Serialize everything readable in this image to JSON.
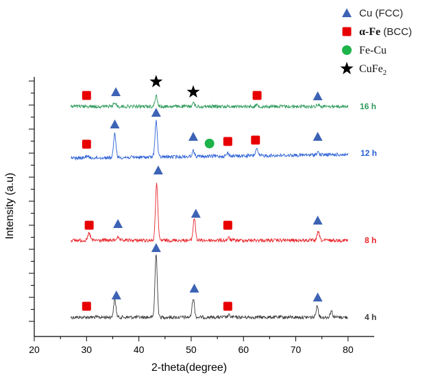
{
  "chart_data": {
    "type": "line",
    "xlabel": "2-theta(degree)",
    "ylabel": "Intensity (a.u)",
    "xlim": [
      20,
      85
    ],
    "xticks": [
      20,
      30,
      40,
      50,
      60,
      70,
      80
    ],
    "y_tick_labels": "none",
    "x_range_of_patterns": [
      27,
      80
    ],
    "series": [
      {
        "name": "4 h",
        "color": "#3a3a3a",
        "peaks": [
          {
            "x": 35.4,
            "height": 0.28
          },
          {
            "x": 43.3,
            "height": 1.0
          },
          {
            "x": 50.4,
            "height": 0.3
          },
          {
            "x": 57.2,
            "height": 0.03
          },
          {
            "x": 74.1,
            "height": 0.18
          },
          {
            "x": 76.8,
            "height": 0.1
          }
        ]
      },
      {
        "name": "8 h",
        "color": "#e8232a",
        "peaks": [
          {
            "x": 30.5,
            "height": 0.12
          },
          {
            "x": 35.9,
            "height": 0.05
          },
          {
            "x": 43.4,
            "height": 0.96
          },
          {
            "x": 50.6,
            "height": 0.37
          },
          {
            "x": 57.2,
            "height": 0.04
          },
          {
            "x": 74.3,
            "height": 0.14
          }
        ]
      },
      {
        "name": "12 h",
        "color": "#2a5fd6",
        "peaks": [
          {
            "x": 30.1,
            "height": 0.05
          },
          {
            "x": 35.4,
            "height": 0.5
          },
          {
            "x": 43.3,
            "height": 0.75
          },
          {
            "x": 50.4,
            "height": 0.12
          },
          {
            "x": 57.0,
            "height": 0.06
          },
          {
            "x": 62.5,
            "height": 0.14
          },
          {
            "x": 74.2,
            "height": 0.06
          }
        ]
      },
      {
        "name": "16 h",
        "color": "#2e9a5c",
        "peaks": [
          {
            "x": 35.4,
            "height": 0.12
          },
          {
            "x": 43.3,
            "height": 0.32
          },
          {
            "x": 50.4,
            "height": 0.1
          },
          {
            "x": 62.6,
            "height": 0.05
          },
          {
            "x": 74.2,
            "height": 0.06
          }
        ]
      }
    ],
    "legend": {
      "placement": "top-right",
      "entries": [
        {
          "symbol": "triangle",
          "color": "#3d63b5",
          "label": "Cu (FCC)"
        },
        {
          "symbol": "square",
          "color": "#e80000",
          "label_main": "α-Fe",
          "label_suffix": " (BCC)"
        },
        {
          "symbol": "circle",
          "color": "#1db34a",
          "label": "Fe-Cu"
        },
        {
          "symbol": "star",
          "color": "#000000",
          "label_main": "CuFe",
          "label_sub": "2"
        }
      ]
    },
    "markers": [
      {
        "series": "4 h",
        "symbol": "square",
        "x": 30.0
      },
      {
        "series": "4 h",
        "symbol": "triangle",
        "x": 35.7
      },
      {
        "series": "4 h",
        "symbol": "triangle",
        "x": 43.3
      },
      {
        "series": "4 h",
        "symbol": "triangle",
        "x": 50.6
      },
      {
        "series": "4 h",
        "symbol": "square",
        "x": 57.0
      },
      {
        "series": "4 h",
        "symbol": "triangle",
        "x": 74.2
      },
      {
        "series": "8 h",
        "symbol": "square",
        "x": 30.5
      },
      {
        "series": "8 h",
        "symbol": "triangle",
        "x": 36.0
      },
      {
        "series": "8 h",
        "symbol": "triangle",
        "x": 43.7
      },
      {
        "series": "8 h",
        "symbol": "triangle",
        "x": 50.9
      },
      {
        "series": "8 h",
        "symbol": "square",
        "x": 57.0
      },
      {
        "series": "8 h",
        "symbol": "triangle",
        "x": 74.2
      },
      {
        "series": "12 h",
        "symbol": "square",
        "x": 30.0
      },
      {
        "series": "12 h",
        "symbol": "triangle",
        "x": 35.4
      },
      {
        "series": "12 h",
        "symbol": "triangle",
        "x": 43.3
      },
      {
        "series": "12 h",
        "symbol": "triangle",
        "x": 50.4
      },
      {
        "series": "12 h",
        "symbol": "circle",
        "x": 53.5
      },
      {
        "series": "12 h",
        "symbol": "square",
        "x": 57.0
      },
      {
        "series": "12 h",
        "symbol": "square",
        "x": 62.3
      },
      {
        "series": "12 h",
        "symbol": "triangle",
        "x": 74.2
      },
      {
        "series": "16 h",
        "symbol": "square",
        "x": 30.0
      },
      {
        "series": "16 h",
        "symbol": "triangle",
        "x": 35.6
      },
      {
        "series": "16 h",
        "symbol": "star",
        "x": 43.3
      },
      {
        "series": "16 h",
        "symbol": "star",
        "x": 50.4
      },
      {
        "series": "16 h",
        "symbol": "square",
        "x": 62.6
      },
      {
        "series": "16 h",
        "symbol": "triangle",
        "x": 74.2
      }
    ]
  }
}
